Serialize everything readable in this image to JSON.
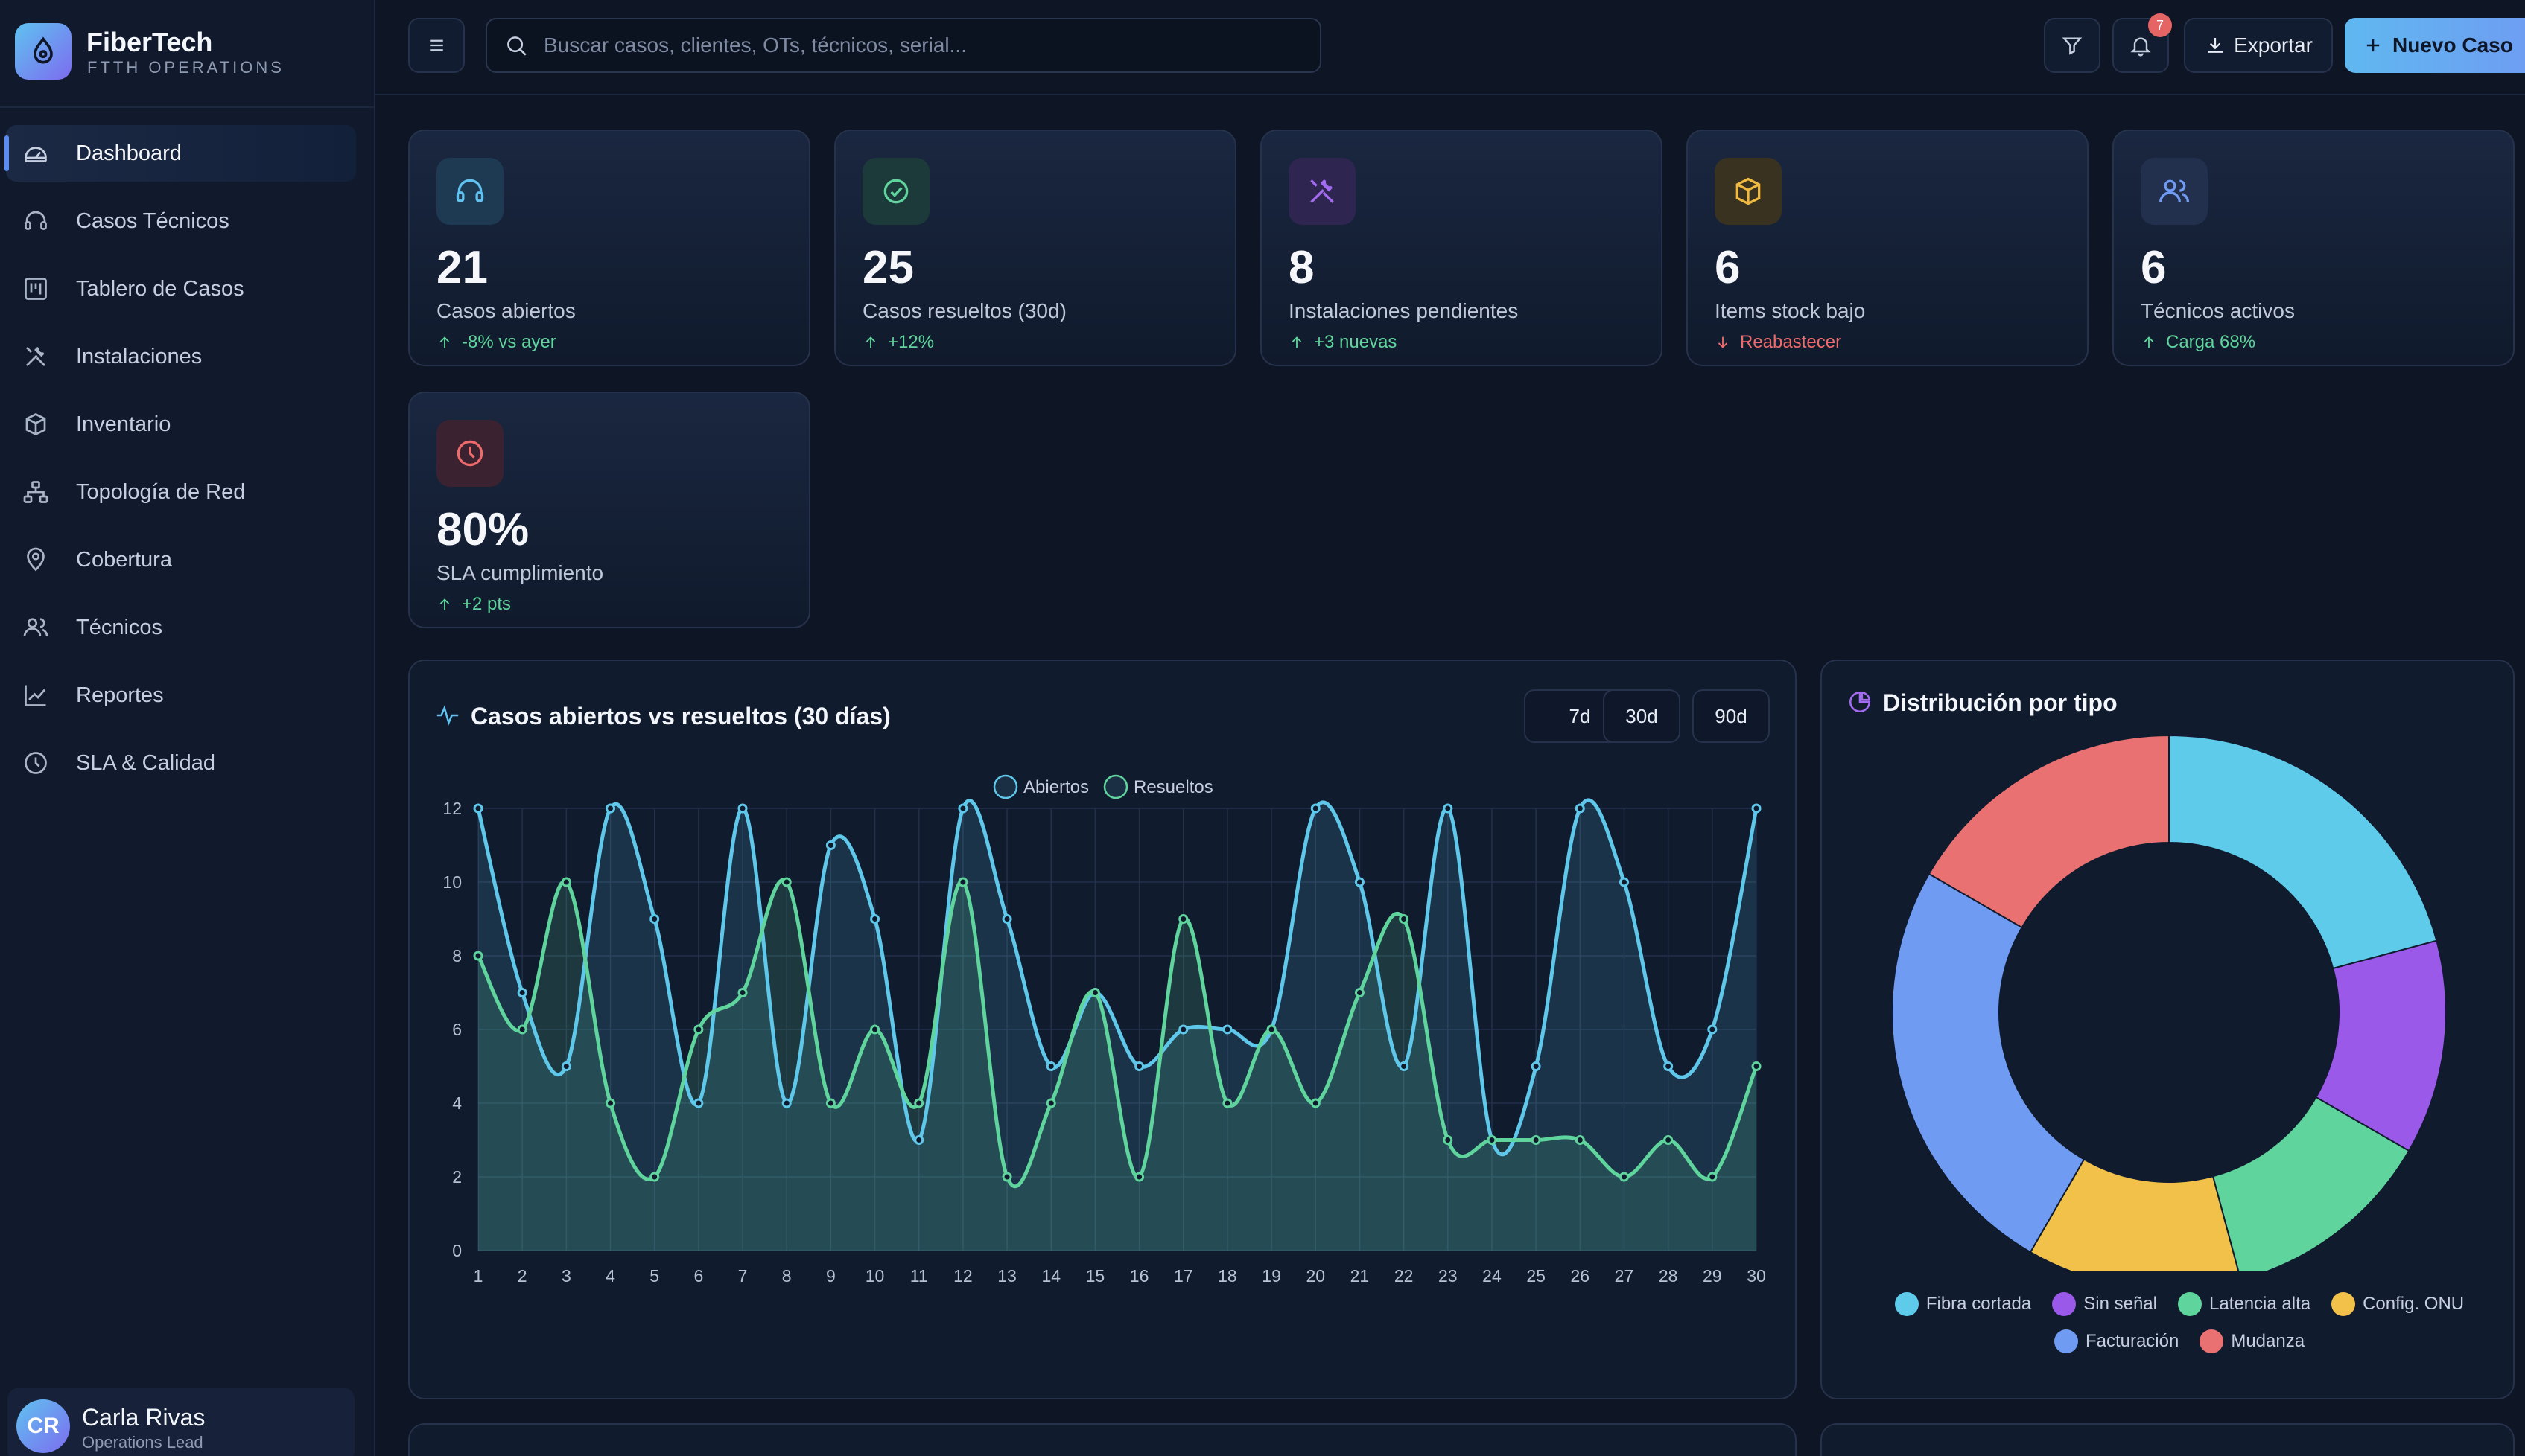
{
  "brand": {
    "name": "FiberTech",
    "subtitle": "FTTH OPERATIONS"
  },
  "nav": [
    {
      "label": "Dashboard",
      "icon": "gauge-icon",
      "active": true
    },
    {
      "label": "Casos Técnicos",
      "icon": "headset-icon"
    },
    {
      "label": "Tablero de Casos",
      "icon": "kanban-icon"
    },
    {
      "label": "Instalaciones",
      "icon": "tools-icon"
    },
    {
      "label": "Inventario",
      "icon": "box-icon"
    },
    {
      "label": "Topología de Red",
      "icon": "network-icon"
    },
    {
      "label": "Cobertura",
      "icon": "map-pin-icon"
    },
    {
      "label": "Técnicos",
      "icon": "users-icon"
    },
    {
      "label": "Reportes",
      "icon": "trend-chart-icon"
    },
    {
      "label": "SLA & Calidad",
      "icon": "clock-icon"
    }
  ],
  "user": {
    "initials": "CR",
    "name": "Carla Rivas",
    "role": "Operations Lead"
  },
  "topbar": {
    "search_placeholder": "Buscar casos, clientes, OTs, técnicos, serial...",
    "notifications_count": "7",
    "export_label": "Exportar",
    "new_case_label": "Nuevo Caso"
  },
  "kpis": [
    {
      "value": "21",
      "label": "Casos abiertos",
      "trend": "-8% vs ayer",
      "direction": "up",
      "icon": "headset-icon",
      "accent": "#5fc2f0"
    },
    {
      "value": "25",
      "label": "Casos resueltos (30d)",
      "trend": "+12%",
      "direction": "up",
      "icon": "check-circle-icon",
      "accent": "#5fd49c"
    },
    {
      "value": "8",
      "label": "Instalaciones pendientes",
      "trend": "+3 nuevas",
      "direction": "up",
      "icon": "tools-icon",
      "accent": "#a36bf0"
    },
    {
      "value": "6",
      "label": "Items stock bajo",
      "trend": "Reabastecer",
      "direction": "down",
      "icon": "box-icon",
      "accent": "#f0b93f"
    },
    {
      "value": "6",
      "label": "Técnicos activos",
      "trend": "Carga 68%",
      "direction": "up",
      "icon": "users-icon",
      "accent": "#6f9cf2"
    },
    {
      "value": "80%",
      "label": "SLA cumplimiento",
      "trend": "+2 pts",
      "direction": "up",
      "icon": "clock-icon",
      "accent": "#ef6b6b"
    }
  ],
  "line_panel": {
    "title": "Casos abiertos vs resueltos (30 días)",
    "ranges": [
      "7d",
      "30d",
      "90d"
    ]
  },
  "pie_panel": {
    "title": "Distribución por tipo"
  },
  "chart_data": [
    {
      "type": "line",
      "title": "Casos abiertos vs resueltos (30 días)",
      "x": [
        1,
        2,
        3,
        4,
        5,
        6,
        7,
        8,
        9,
        10,
        11,
        12,
        13,
        14,
        15,
        16,
        17,
        18,
        19,
        20,
        21,
        22,
        23,
        24,
        25,
        26,
        27,
        28,
        29,
        30
      ],
      "ylim": [
        0,
        12
      ],
      "yticks": [
        0,
        2,
        4,
        6,
        8,
        10,
        12
      ],
      "grid": true,
      "legend": "top",
      "series": [
        {
          "name": "Abiertos",
          "color": "#5fc8ea",
          "values": [
            12,
            7,
            5,
            12,
            9,
            4,
            12,
            4,
            11,
            9,
            3,
            12,
            9,
            5,
            7,
            5,
            6,
            6,
            6,
            12,
            10,
            5,
            12,
            3,
            5,
            12,
            10,
            5,
            6,
            12
          ]
        },
        {
          "name": "Resueltos",
          "color": "#5fd49c",
          "values": [
            8,
            6,
            10,
            4,
            2,
            6,
            7,
            10,
            4,
            6,
            4,
            10,
            2,
            4,
            7,
            2,
            9,
            4,
            6,
            4,
            7,
            9,
            3,
            3,
            3,
            3,
            2,
            3,
            2,
            5
          ]
        }
      ]
    },
    {
      "type": "pie",
      "title": "Distribución por tipo",
      "legend": "bottom",
      "slices": [
        {
          "label": "Fibra cortada",
          "value": 5,
          "color": "#5ecbea"
        },
        {
          "label": "Sin señal",
          "value": 3,
          "color": "#9b59ea"
        },
        {
          "label": "Latencia alta",
          "value": 3,
          "color": "#5fd49c"
        },
        {
          "label": "Config. ONU",
          "value": 3,
          "color": "#f2c14a"
        },
        {
          "label": "Facturación",
          "value": 6,
          "color": "#6f9cf2"
        },
        {
          "label": "Mudanza",
          "value": 4,
          "color": "#e97171"
        }
      ]
    }
  ]
}
